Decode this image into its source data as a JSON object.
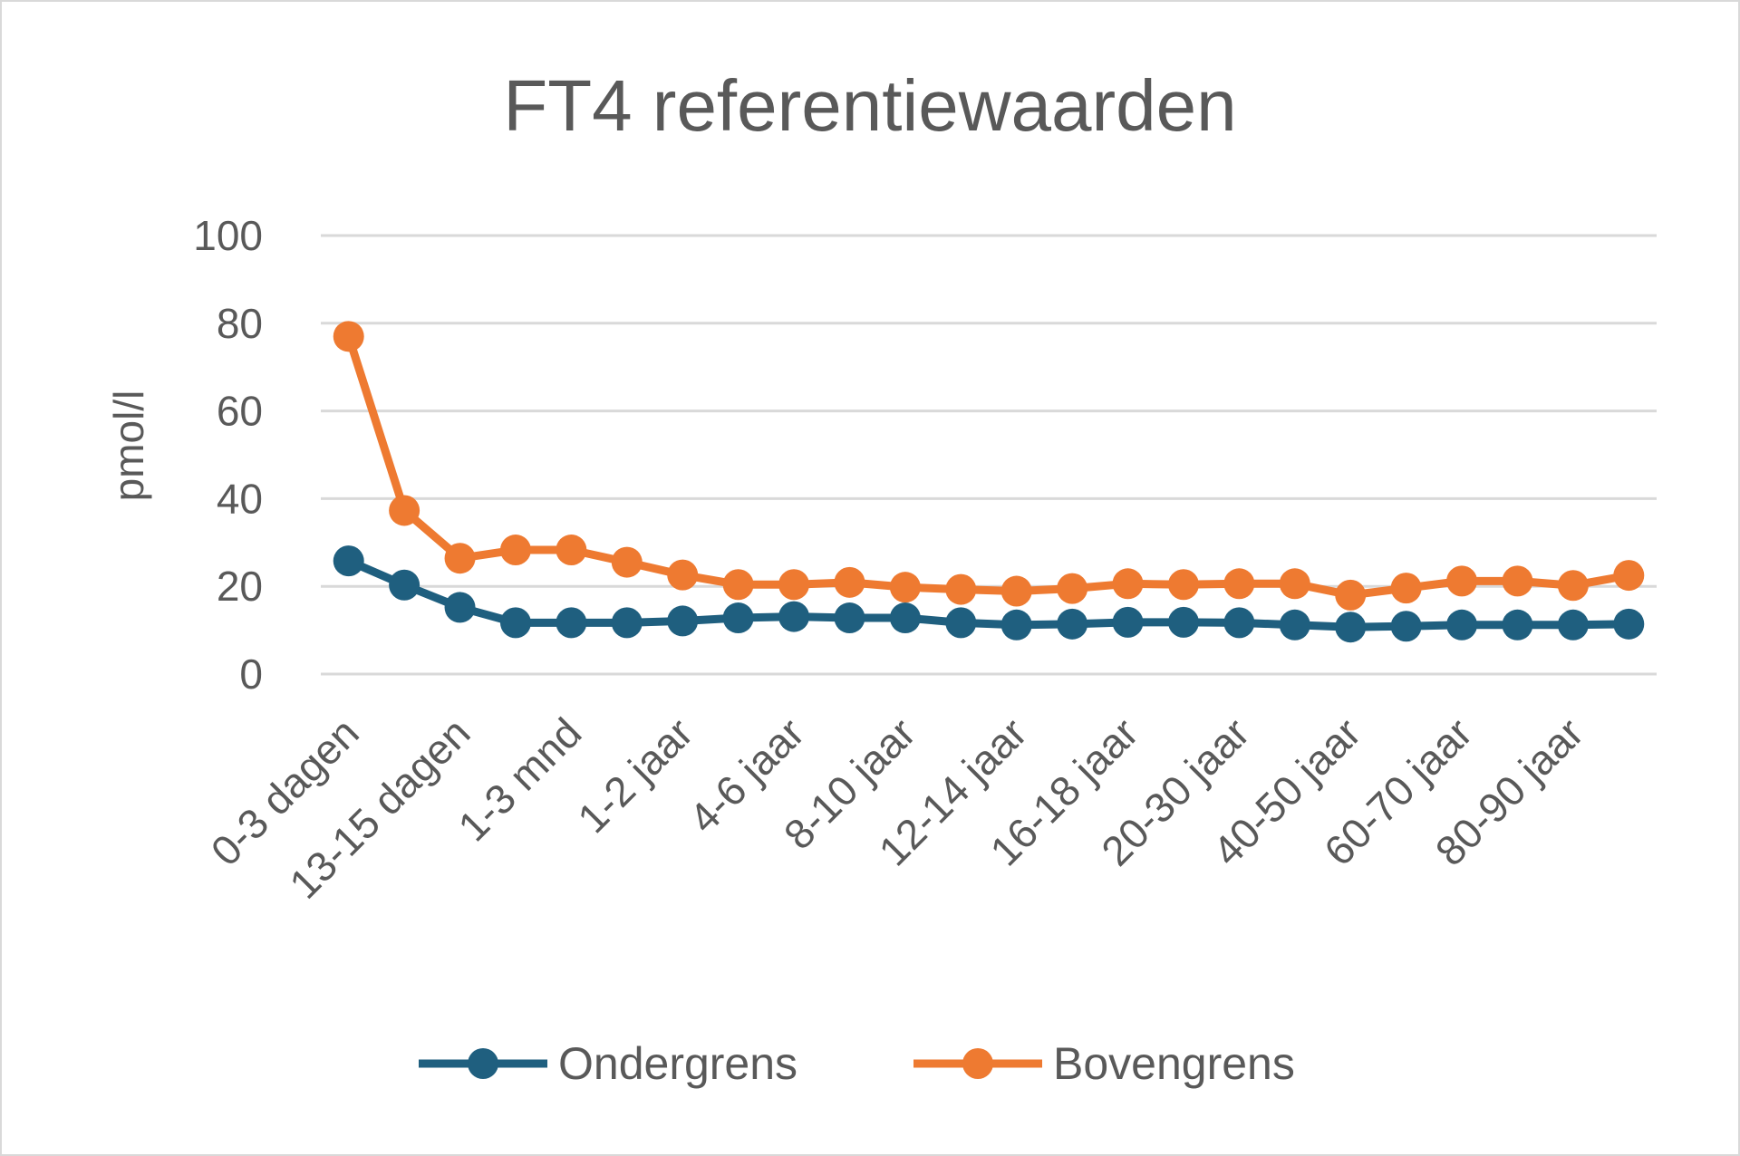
{
  "chart_data": {
    "type": "line",
    "title": "FT4 referentiewaarden",
    "xlabel": "",
    "ylabel": "pmol/l",
    "ylim": [
      0,
      100
    ],
    "yticks": [
      0,
      20,
      40,
      60,
      80,
      100
    ],
    "grid": true,
    "legend_position": "bottom",
    "categories": [
      "0-3 dagen",
      "",
      "13-15 dagen",
      "",
      "1-3 mnd",
      "",
      "1-2 jaar",
      "",
      "4-6 jaar",
      "",
      "8-10 jaar",
      "",
      "12-14 jaar",
      "",
      "16-18 jaar",
      "",
      "20-30 jaar",
      "",
      "40-50 jaar",
      "",
      "60-70 jaar",
      "",
      "80-90 jaar",
      ""
    ],
    "series": [
      {
        "name": "Ondergrens",
        "color": "#1f5f7f",
        "values": [
          25.8,
          20.3,
          15.2,
          11.7,
          11.7,
          11.7,
          12.1,
          12.8,
          13.1,
          12.8,
          12.8,
          11.7,
          11.2,
          11.4,
          11.8,
          11.8,
          11.7,
          11.2,
          10.7,
          10.9,
          11.2,
          11.2,
          11.2,
          11.4
        ]
      },
      {
        "name": "Bovengrens",
        "color": "#ee7a31",
        "values": [
          77.0,
          37.3,
          26.4,
          28.3,
          28.3,
          25.5,
          22.6,
          20.4,
          20.4,
          20.9,
          19.8,
          19.3,
          18.9,
          19.5,
          20.6,
          20.4,
          20.6,
          20.6,
          18.0,
          19.6,
          21.2,
          21.2,
          20.2,
          22.5
        ]
      }
    ]
  }
}
